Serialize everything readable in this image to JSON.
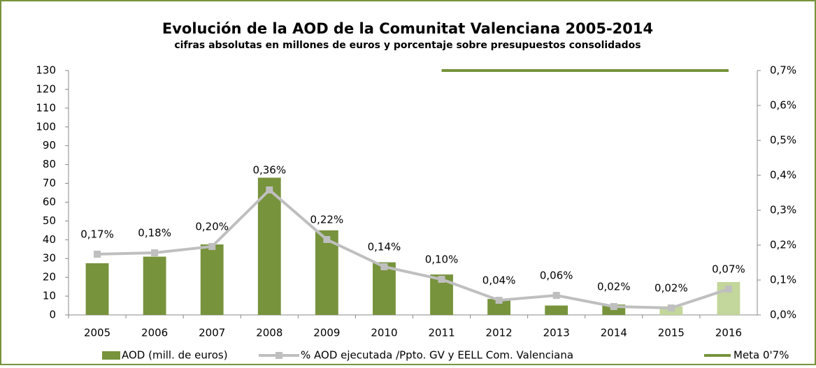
{
  "chart_data": {
    "type": "combo",
    "title": "Evolución de la AOD de la Comunitat Valenciana 2005-2014",
    "subtitle": "cifras absolutas en millones de euros y porcentaje sobre presupuestos consolidados",
    "categories": [
      "2005",
      "2006",
      "2007",
      "2008",
      "2009",
      "2010",
      "2011",
      "2012",
      "2013",
      "2014",
      "2015",
      "2016"
    ],
    "ylim": [
      0,
      130
    ],
    "yticks": [
      0,
      10,
      20,
      30,
      40,
      50,
      60,
      70,
      80,
      90,
      100,
      110,
      120,
      130
    ],
    "y2lim": [
      0,
      0.7
    ],
    "y2ticks": [
      {
        "value": 0,
        "label": "0,0%"
      },
      {
        "value": 0.1,
        "label": "0,1%"
      },
      {
        "value": 0.2,
        "label": "0,2%"
      },
      {
        "value": 0.3,
        "label": "0,3%"
      },
      {
        "value": 0.4,
        "label": "0,4%"
      },
      {
        "value": 0.5,
        "label": "0,5%"
      },
      {
        "value": 0.6,
        "label": "0,6%"
      },
      {
        "value": 0.7,
        "label": "0,7%"
      }
    ],
    "grid": false,
    "legend": "bottom",
    "series": [
      {
        "name": "AOD (mill. de euros)",
        "type": "bar",
        "color": "#77933c",
        "colors": [
          "#77933c",
          "#77933c",
          "#77933c",
          "#77933c",
          "#77933c",
          "#77933c",
          "#77933c",
          "#77933c",
          "#77933c",
          "#77933c",
          "#c3d69b",
          "#c3d69b"
        ],
        "values": [
          27.5,
          31,
          37.5,
          73,
          45,
          28,
          21.5,
          8.5,
          5,
          5.5,
          4.5,
          17.5
        ]
      },
      {
        "name": "% AOD ejecutada /Ppto. GV y EELL Com. Valenciana",
        "type": "line",
        "axis": "y2",
        "color": "#bfbfbf",
        "values": [
          0.174,
          0.178,
          0.196,
          0.358,
          0.216,
          0.138,
          0.102,
          0.042,
          0.056,
          0.024,
          0.02,
          0.074
        ],
        "value_labels": [
          "0,17%",
          "0,18%",
          "0,20%",
          "0,36%",
          "0,22%",
          "0,14%",
          "0,10%",
          "0,04%",
          "0,06%",
          "0,02%",
          "0,02%",
          "0,07%"
        ]
      },
      {
        "name": "Meta 0'7%",
        "type": "target",
        "axis": "y2",
        "color": "#77933c",
        "values": [
          null,
          null,
          null,
          null,
          null,
          null,
          0.7,
          0.7,
          0.7,
          0.7,
          0.7,
          0.7
        ]
      }
    ]
  }
}
